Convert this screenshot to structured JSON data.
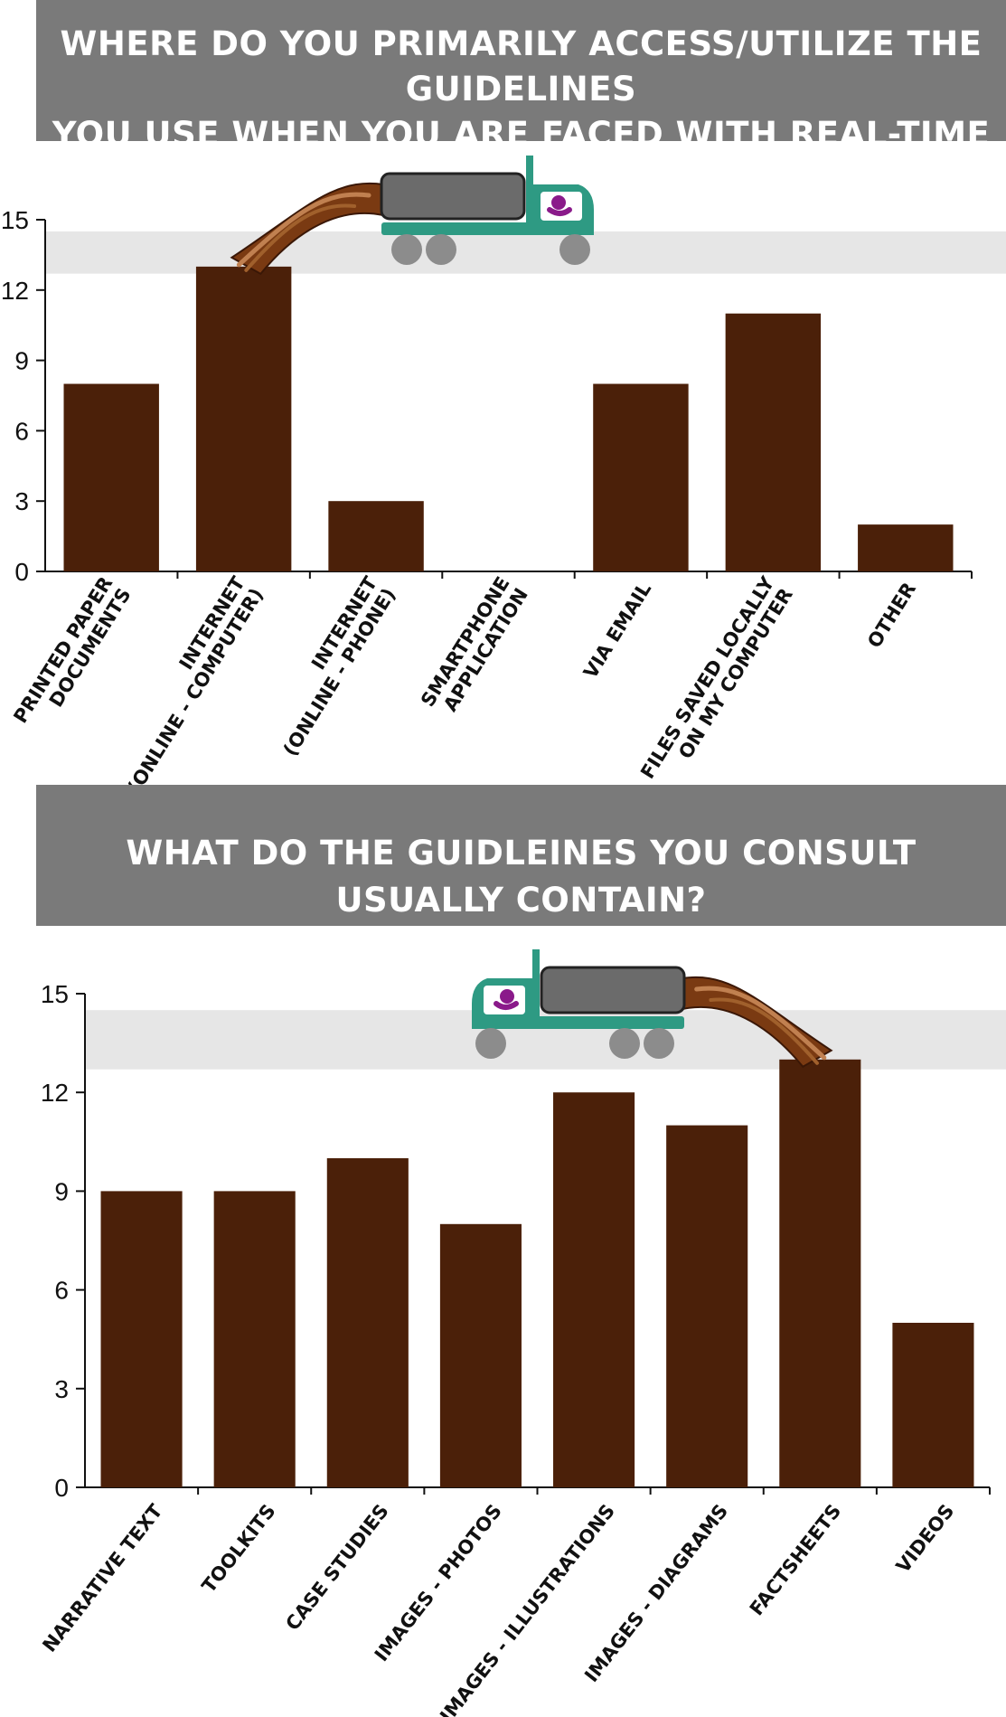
{
  "banners": {
    "top": {
      "line1": "WHERE DO YOU PRIMARILY ACCESS/UTILIZE THE GUIDELINES",
      "line2": "YOU USE WHEN YOU ARE FACED WITH REAL-TIME DECISIONS?"
    },
    "bottom": {
      "line1": "WHAT DO THE GUIDLEINES YOU CONSULT USUALLY CONTAIN?"
    }
  },
  "colors": {
    "bar": "#4b2009",
    "banner": "#7a7a7a",
    "band": "#e6e6e6",
    "truck_body": "#2e9a83",
    "truck_tank": "#6b6b6b",
    "wheel": "#8c8c8c",
    "driver": "#8a1a8a"
  },
  "decoration": {
    "truck_icon": "truck-icon",
    "spill_icon": "chocolate-spill-icon"
  },
  "chart_data": [
    {
      "type": "bar",
      "title": "",
      "xlabel": "",
      "ylabel": "",
      "ylim": [
        0,
        15
      ],
      "yticks": [
        0,
        3,
        6,
        9,
        12,
        15
      ],
      "grid": false,
      "categories": [
        [
          "PRINTED PAPER",
          "DOCUMENTS"
        ],
        [
          "INTERNET",
          "(ONLINE - COMPUTER)"
        ],
        [
          "INTERNET",
          "(ONLINE - PHONE)"
        ],
        [
          "SMARTPHONE",
          "APPLICATION"
        ],
        [
          "VIA EMAIL"
        ],
        [
          "FILES SAVED LOCALLY",
          "ON MY COMPUTER"
        ],
        [
          "OTHER"
        ]
      ],
      "values": [
        8,
        13,
        3,
        0,
        8,
        11,
        2
      ],
      "highlight": "INTERNET (ONLINE - COMPUTER)"
    },
    {
      "type": "bar",
      "title": "",
      "xlabel": "",
      "ylabel": "",
      "ylim": [
        0,
        15
      ],
      "yticks": [
        0,
        3,
        6,
        9,
        12,
        15
      ],
      "grid": false,
      "categories": [
        [
          "NARRATIVE TEXT"
        ],
        [
          "TOOLKITS"
        ],
        [
          "CASE STUDIES"
        ],
        [
          "IMAGES - PHOTOS"
        ],
        [
          "IMAGES - ILLUSTRATIONS"
        ],
        [
          "IMAGES - DIAGRAMS"
        ],
        [
          "FACTSHEETS"
        ],
        [
          "VIDEOS"
        ]
      ],
      "values": [
        9,
        9,
        10,
        8,
        12,
        11,
        13,
        5
      ],
      "highlight": "FACTSHEETS"
    }
  ]
}
